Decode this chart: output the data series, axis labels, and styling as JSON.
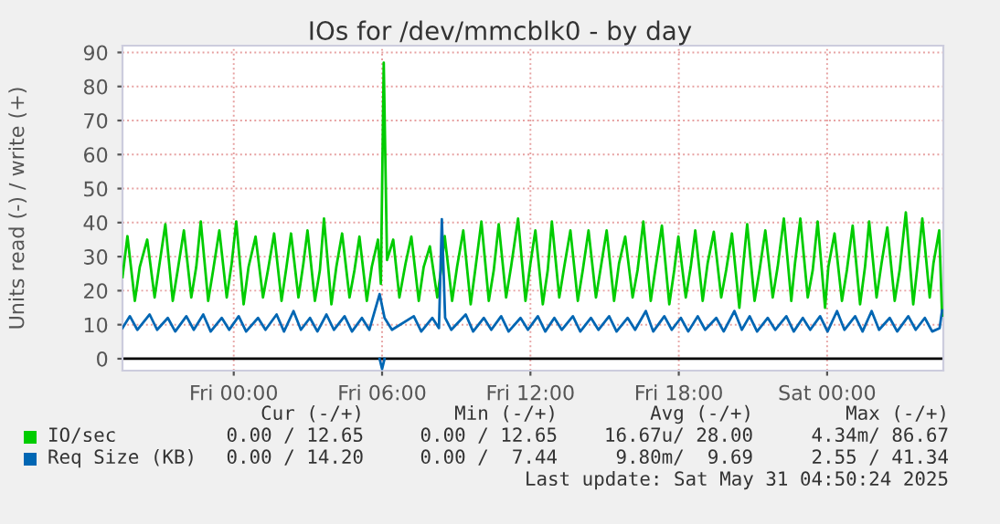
{
  "chart_data": {
    "type": "line",
    "title": "IOs for /dev/mmcblk0 - by day",
    "ylabel": "Units read (-) / write (+)",
    "xlim": [
      "2025-05-29T19:30",
      "2025-05-31T04:42"
    ],
    "ylim": [
      -3.5,
      92
    ],
    "xticks": [
      {
        "value": "2025-05-30T00:00",
        "label": "Fri 00:00"
      },
      {
        "value": "2025-05-30T06:00",
        "label": "Fri 06:00"
      },
      {
        "value": "2025-05-30T12:00",
        "label": "Fri 12:00"
      },
      {
        "value": "2025-05-30T18:00",
        "label": "Fri 18:00"
      },
      {
        "value": "2025-05-31T00:00",
        "label": "Sat 00:00"
      }
    ],
    "yticks": [
      0,
      10,
      20,
      30,
      40,
      50,
      60,
      70,
      80,
      90
    ],
    "grid": true,
    "legend": "bottom",
    "ref_lines": [
      {
        "axis": "y",
        "value": 0,
        "color": "#000000"
      }
    ],
    "series": [
      {
        "name": "IO/sec",
        "color": "#00cc00",
        "x": [
          "2025-05-29T19:30",
          "2025-05-29T19:42",
          "2025-05-29T20:00",
          "2025-05-29T20:12",
          "2025-05-29T20:30",
          "2025-05-29T20:48",
          "2025-05-29T21:00",
          "2025-05-29T21:14",
          "2025-05-29T21:32",
          "2025-05-29T21:44",
          "2025-05-29T21:59",
          "2025-05-29T22:17",
          "2025-05-29T22:29",
          "2025-05-29T22:40",
          "2025-05-29T22:58",
          "2025-05-29T23:10",
          "2025-05-29T23:25",
          "2025-05-29T23:43",
          "2025-05-29T23:55",
          "2025-05-30T00:06",
          "2025-05-30T00:24",
          "2025-05-30T00:36",
          "2025-05-30T00:53",
          "2025-05-30T01:11",
          "2025-05-30T01:23",
          "2025-05-30T01:38",
          "2025-05-30T01:56",
          "2025-05-30T02:08",
          "2025-05-30T02:19",
          "2025-05-30T02:37",
          "2025-05-30T02:49",
          "2025-05-30T02:59",
          "2025-05-30T03:17",
          "2025-05-30T03:29",
          "2025-05-30T03:39",
          "2025-05-30T03:57",
          "2025-05-30T04:09",
          "2025-05-30T04:23",
          "2025-05-30T04:41",
          "2025-05-30T04:53",
          "2025-05-30T05:05",
          "2025-05-30T05:23",
          "2025-05-30T05:35",
          "2025-05-30T05:50",
          "2025-05-30T05:57",
          "2025-05-30T06:04",
          "2025-05-30T06:12",
          "2025-05-30T06:27",
          "2025-05-30T06:42",
          "2025-05-30T06:57",
          "2025-05-30T07:11",
          "2025-05-30T07:29",
          "2025-05-30T07:41",
          "2025-05-30T07:56",
          "2025-05-30T08:14",
          "2025-05-30T08:23",
          "2025-05-30T08:32",
          "2025-05-30T08:50",
          "2025-05-30T09:02",
          "2025-05-30T09:17",
          "2025-05-30T09:35",
          "2025-05-30T09:47",
          "2025-05-30T10:01",
          "2025-05-30T10:19",
          "2025-05-30T10:31",
          "2025-05-30T10:43",
          "2025-05-30T11:01",
          "2025-05-30T11:13",
          "2025-05-30T11:30",
          "2025-05-30T11:48",
          "2025-05-30T12:00",
          "2025-05-30T12:12",
          "2025-05-30T12:30",
          "2025-05-30T12:42",
          "2025-05-30T12:52",
          "2025-05-30T13:10",
          "2025-05-30T13:22",
          "2025-05-30T13:37",
          "2025-05-30T13:55",
          "2025-05-30T14:07",
          "2025-05-30T14:21",
          "2025-05-30T14:39",
          "2025-05-30T14:51",
          "2025-05-30T15:05",
          "2025-05-30T15:23",
          "2025-05-30T15:35",
          "2025-05-30T15:50",
          "2025-05-30T16:08",
          "2025-05-30T16:20",
          "2025-05-30T16:34",
          "2025-05-30T16:52",
          "2025-05-30T17:04",
          "2025-05-30T17:19",
          "2025-05-30T17:37",
          "2025-05-30T17:49",
          "2025-05-30T17:59",
          "2025-05-30T18:17",
          "2025-05-30T18:29",
          "2025-05-30T18:40",
          "2025-05-30T18:58",
          "2025-05-30T19:10",
          "2025-05-30T19:25",
          "2025-05-30T19:43",
          "2025-05-30T19:55",
          "2025-05-30T20:09",
          "2025-05-30T20:27",
          "2025-05-30T20:36",
          "2025-05-30T20:46",
          "2025-05-30T21:04",
          "2025-05-30T21:16",
          "2025-05-30T21:30",
          "2025-05-30T21:48",
          "2025-05-30T22:00",
          "2025-05-30T22:15",
          "2025-05-30T22:33",
          "2025-05-30T22:42",
          "2025-05-30T22:55",
          "2025-05-30T23:13",
          "2025-05-30T23:25",
          "2025-05-30T23:37",
          "2025-05-30T23:55",
          "2025-05-31T00:03",
          "2025-05-31T00:18",
          "2025-05-31T00:36",
          "2025-05-31T00:48",
          "2025-05-31T01:02",
          "2025-05-31T01:20",
          "2025-05-31T01:32",
          "2025-05-31T01:42",
          "2025-05-31T02:00",
          "2025-05-31T02:12",
          "2025-05-31T02:26",
          "2025-05-31T02:44",
          "2025-05-31T02:56",
          "2025-05-31T03:11",
          "2025-05-31T03:29",
          "2025-05-31T03:39",
          "2025-05-31T03:51",
          "2025-05-31T04:09",
          "2025-05-31T04:18",
          "2025-05-31T04:32",
          "2025-05-31T04:39"
        ],
        "values": [
          24,
          36,
          17,
          27,
          35,
          18,
          28,
          39.5,
          17,
          26,
          37.7,
          18,
          27,
          40.3,
          17,
          26,
          37.7,
          18,
          28,
          40.3,
          16,
          27,
          35.9,
          18,
          26,
          36.8,
          17,
          27,
          36.8,
          18,
          28,
          37.7,
          17,
          26,
          41.2,
          16,
          27,
          36.8,
          18,
          26,
          35.9,
          17,
          27,
          35,
          22,
          87,
          29,
          35,
          18,
          28,
          35.9,
          17,
          27,
          33,
          18,
          26,
          36,
          17,
          27,
          37.7,
          16,
          27,
          40.3,
          17,
          26,
          39.5,
          18,
          27,
          41.2,
          17,
          28,
          37.7,
          16,
          26,
          40.3,
          18,
          27,
          37.7,
          17,
          26,
          37.7,
          18,
          27,
          37.7,
          17,
          28,
          35.9,
          18,
          26,
          40.3,
          17,
          27,
          39.1,
          16,
          26,
          35.9,
          18,
          27,
          37.7,
          17,
          28,
          37.3,
          18,
          26,
          36.8,
          15,
          27,
          39.5,
          17,
          26,
          37.7,
          18,
          27,
          41.2,
          17,
          28,
          41.2,
          18,
          26,
          40.3,
          15,
          27,
          36.8,
          17,
          26,
          39.1,
          16,
          27,
          40.3,
          18,
          28,
          38.6,
          17,
          26,
          43,
          16,
          27,
          41.2,
          18,
          28,
          37.7,
          12.7
        ]
      },
      {
        "name": "Req Size (KB)",
        "color": "#0066b3",
        "x": [
          "2025-05-29T19:30",
          "2025-05-29T19:48",
          "2025-05-29T20:06",
          "2025-05-29T20:36",
          "2025-05-29T20:54",
          "2025-05-29T21:20",
          "2025-05-29T21:38",
          "2025-05-29T22:05",
          "2025-05-29T22:23",
          "2025-05-29T22:46",
          "2025-05-29T23:04",
          "2025-05-29T23:31",
          "2025-05-29T23:49",
          "2025-05-30T00:12",
          "2025-05-30T00:30",
          "2025-05-30T00:59",
          "2025-05-30T01:17",
          "2025-05-30T01:44",
          "2025-05-30T02:02",
          "2025-05-30T02:25",
          "2025-05-30T02:43",
          "2025-05-30T03:05",
          "2025-05-30T03:23",
          "2025-05-30T03:45",
          "2025-05-30T04:03",
          "2025-05-30T04:29",
          "2025-05-30T04:47",
          "2025-05-30T05:11",
          "2025-05-30T05:29",
          "2025-05-30T05:54",
          "2025-05-30T06:06",
          "2025-05-30T06:24",
          "2025-05-30T07:17",
          "2025-05-30T07:35",
          "2025-05-30T08:02",
          "2025-05-30T08:18",
          "2025-05-30T08:25",
          "2025-05-30T08:33",
          "2025-05-30T08:48",
          "2025-05-30T09:23",
          "2025-05-30T09:41",
          "2025-05-30T10:07",
          "2025-05-30T10:25",
          "2025-05-30T10:49",
          "2025-05-30T11:07",
          "2025-05-30T11:36",
          "2025-05-30T11:54",
          "2025-05-30T12:18",
          "2025-05-30T12:36",
          "2025-05-30T12:58",
          "2025-05-30T13:16",
          "2025-05-30T13:43",
          "2025-05-30T14:01",
          "2025-05-30T14:27",
          "2025-05-30T14:45",
          "2025-05-30T15:11",
          "2025-05-30T15:29",
          "2025-05-30T15:56",
          "2025-05-30T16:14",
          "2025-05-30T16:40",
          "2025-05-30T16:58",
          "2025-05-30T17:25",
          "2025-05-30T17:43",
          "2025-05-30T18:05",
          "2025-05-30T18:23",
          "2025-05-30T18:46",
          "2025-05-30T19:04",
          "2025-05-30T19:31",
          "2025-05-30T19:49",
          "2025-05-30T20:15",
          "2025-05-30T20:33",
          "2025-05-30T20:52",
          "2025-05-30T21:10",
          "2025-05-30T21:36",
          "2025-05-30T21:54",
          "2025-05-30T22:21",
          "2025-05-30T22:39",
          "2025-05-30T23:01",
          "2025-05-30T23:19",
          "2025-05-30T23:43",
          "2025-05-31T00:01",
          "2025-05-31T00:24",
          "2025-05-31T00:42",
          "2025-05-31T01:08",
          "2025-05-31T01:26",
          "2025-05-31T01:48",
          "2025-05-31T02:06",
          "2025-05-31T02:32",
          "2025-05-31T02:50",
          "2025-05-31T03:17",
          "2025-05-31T03:35",
          "2025-05-31T03:57",
          "2025-05-31T04:15",
          "2025-05-31T04:33",
          "2025-05-31T04:39"
        ],
        "values": [
          9,
          12.5,
          8.5,
          13,
          8.5,
          12,
          8,
          12.5,
          8.5,
          13,
          8,
          12,
          8.5,
          12.5,
          8,
          12,
          8.5,
          13,
          8,
          14,
          8.5,
          12,
          8,
          13,
          8.5,
          12.5,
          8,
          12,
          8.5,
          19,
          12,
          8.5,
          12.5,
          8,
          12,
          9,
          41,
          12,
          8.5,
          13,
          8,
          12,
          8.5,
          12.5,
          8,
          12,
          8.5,
          12.5,
          8,
          12,
          8.5,
          12.5,
          8,
          12,
          8.5,
          12.5,
          8,
          12,
          8.5,
          14,
          8,
          12.5,
          8.5,
          12,
          8,
          12.5,
          8.5,
          12,
          8,
          14,
          8.5,
          12.5,
          8,
          12,
          8.5,
          12.5,
          8,
          12,
          8.5,
          12.5,
          8,
          14,
          8.5,
          12.5,
          8,
          14,
          8.5,
          12,
          8,
          12.5,
          8.5,
          12,
          8,
          9,
          14.2
        ]
      },
      {
        "color": "#0066b3",
        "x": [
          "2025-05-30T05:54",
          "2025-05-30T06:00",
          "2025-05-30T06:06"
        ],
        "values": [
          0,
          -3,
          0
        ]
      }
    ],
    "annotations": [
      "Cur (-/+)",
      "Min (-/+)",
      "Avg (-/+)",
      "Max (-/+)",
      "0.00 / 12.65",
      "0.00 / 12.65",
      "16.67u/ 28.00",
      "4.34m/ 86.67",
      "0.00 / 14.20",
      "0.00 /  7.44",
      "9.80m/  9.69",
      "2.55 / 41.34",
      "Last update: Sat May 31 04:50:24 2025"
    ]
  }
}
